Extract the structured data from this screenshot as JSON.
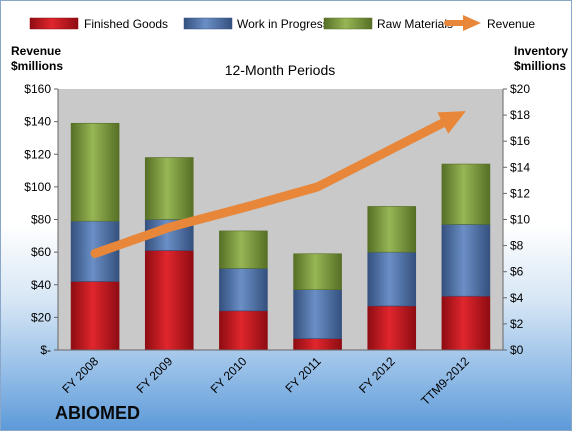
{
  "chart_data": {
    "type": "bar",
    "subtitle": "12-Month Periods",
    "categories": [
      "FY 2008",
      "FY 2009",
      "FY 2010",
      "FY 2011",
      "FY 2012",
      "TTM9-2012"
    ],
    "series": [
      {
        "name": "Finished Goods",
        "kind": "stacked-bar",
        "axis": "left",
        "values": [
          42,
          61,
          24,
          7,
          27,
          33
        ],
        "color": "#c0161e"
      },
      {
        "name": "Work in Progress",
        "kind": "stacked-bar",
        "axis": "left",
        "values": [
          37,
          19,
          26,
          30,
          33,
          44
        ],
        "color": "#4b6fa8"
      },
      {
        "name": "Raw Materials",
        "kind": "stacked-bar",
        "axis": "left",
        "values": [
          60,
          38,
          23,
          22,
          28,
          37
        ],
        "color": "#7a9a3c"
      },
      {
        "name": "Revenue",
        "kind": "line-arrow",
        "axis": "right",
        "values": [
          7.4,
          9.4,
          10.9,
          12.5,
          15.4,
          18.3
        ],
        "color": "#e8873a"
      }
    ],
    "left_axis": {
      "title_line1": "Revenue",
      "title_line2": "$millions",
      "min": 0,
      "max": 160,
      "step": 20,
      "tick_labels": [
        "$-",
        "$20",
        "$40",
        "$60",
        "$80",
        "$100",
        "$120",
        "$140",
        "$160"
      ]
    },
    "right_axis": {
      "title_line1": "Inventory",
      "title_line2": "$millions",
      "min": 0,
      "max": 20,
      "step": 2,
      "tick_labels": [
        "$0",
        "$2",
        "$4",
        "$6",
        "$8",
        "$10",
        "$12",
        "$14",
        "$16",
        "$18",
        "$20"
      ]
    },
    "legend_position": "top",
    "grid": false
  },
  "brand_label": "ABIOMED"
}
